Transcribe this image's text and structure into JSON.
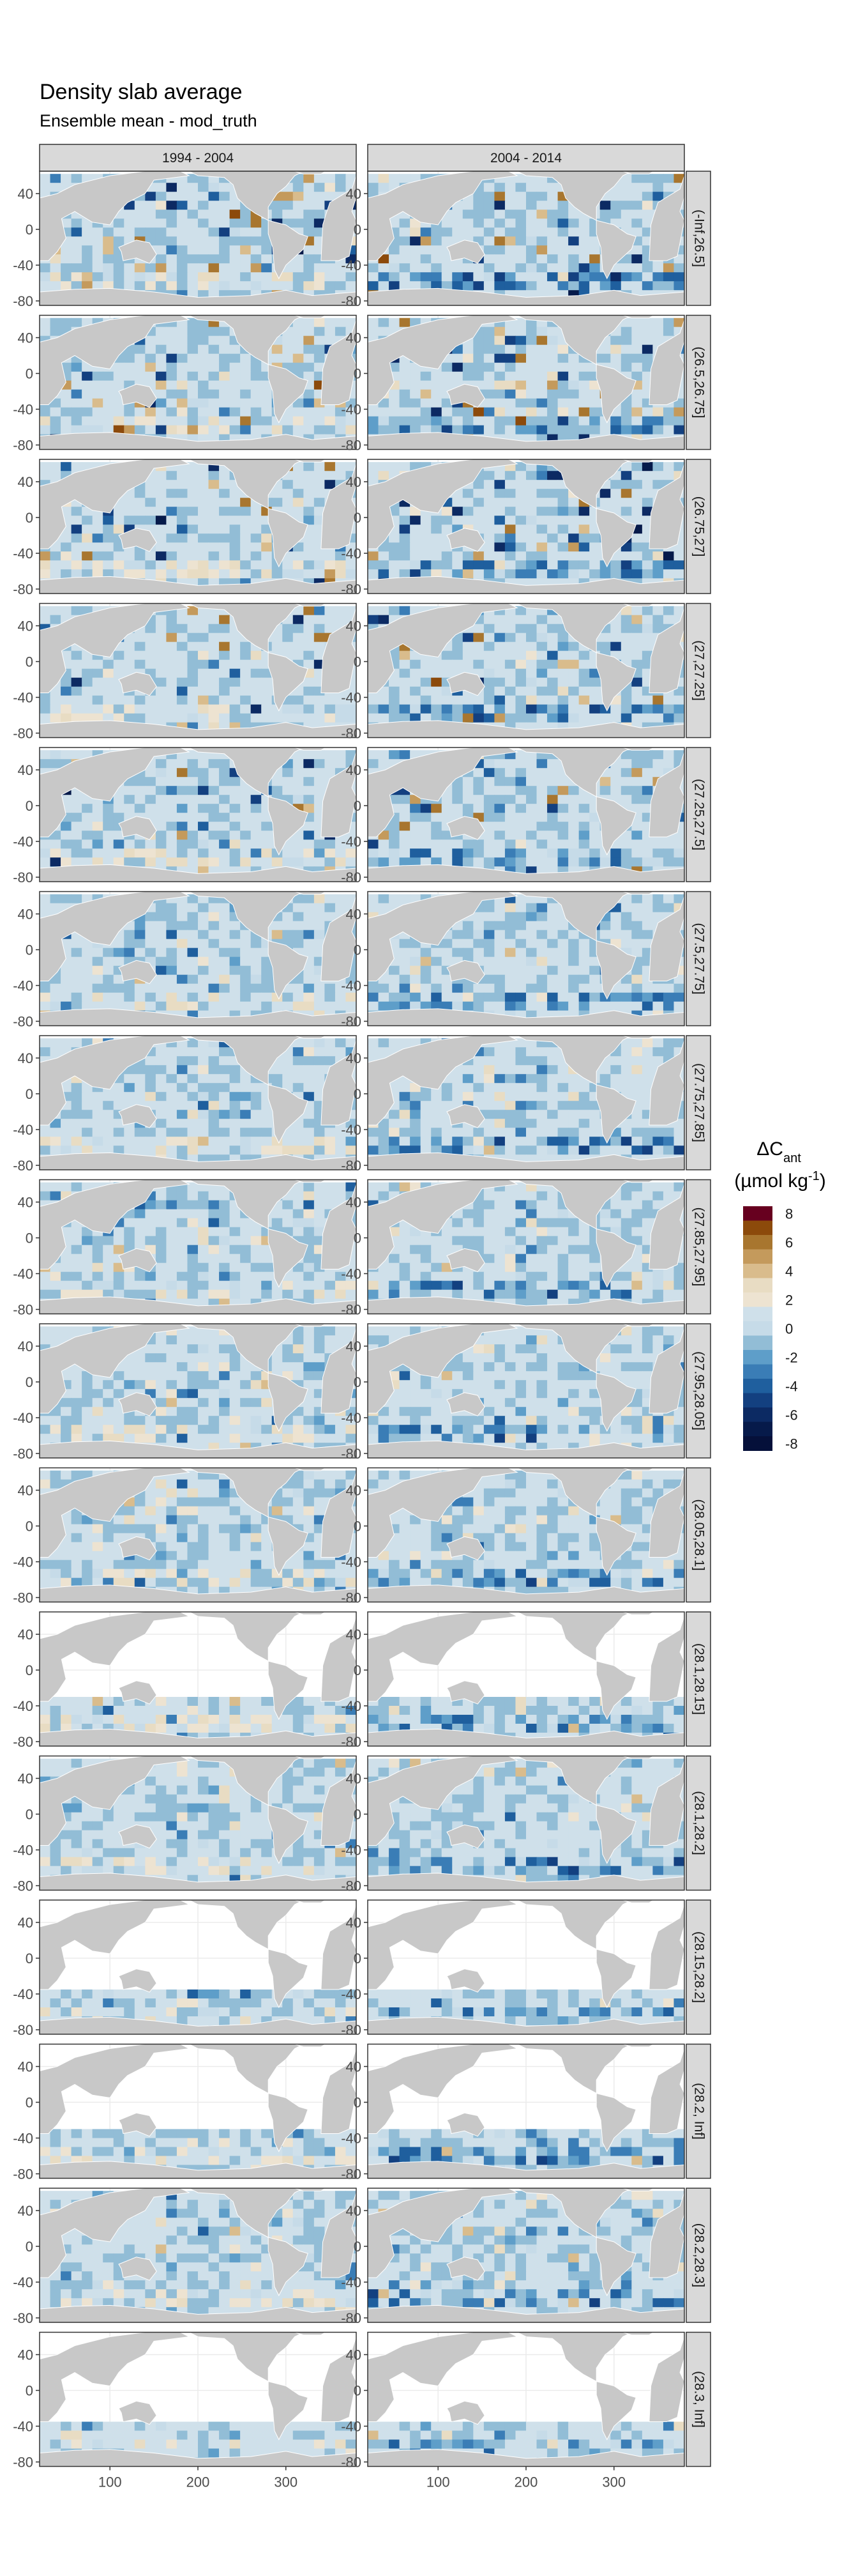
{
  "chart_data": {
    "type": "heatmap",
    "title": "Density slab average",
    "subtitle": "Ensemble mean - mod_truth",
    "xlabel": "",
    "ylabel": "",
    "columns": [
      "1994 - 2004",
      "2004 - 2014"
    ],
    "rows": [
      "(-Inf,26.5]",
      "(26.5,26.75]",
      "(26.75,27]",
      "(27,27.25]",
      "(27.25,27.5]",
      "(27.5,27.75]",
      "(27.75,27.85]",
      "(27.85,27.95]",
      "(27.95,28.05]",
      "(28.05,28.1]",
      "(28.1,28.15]",
      "(28.1,28.2]",
      "(28.15,28.2]",
      "(28.2, Inf]",
      "(28.2,28.3]",
      "(28.3, Inf]"
    ],
    "x_ticks": [
      100,
      200,
      300
    ],
    "y_ticks": [
      40,
      0,
      -40,
      -80
    ],
    "xlim": [
      20,
      380
    ],
    "ylim": [
      -85,
      65
    ],
    "legend": {
      "title_main": "ΔC",
      "title_sub": "ant",
      "title_unit": "(µmol kg",
      "title_exp": "-1",
      "title_close": ")",
      "position": "right",
      "breaks": [
        {
          "label": "8",
          "color": "#67001f"
        },
        {
          "label": "",
          "color": "#8c4a0b"
        },
        {
          "label": "6",
          "color": "#a8762f"
        },
        {
          "label": "",
          "color": "#c49a5c"
        },
        {
          "label": "4",
          "color": "#d9bc8c"
        },
        {
          "label": "",
          "color": "#e8dcc3"
        },
        {
          "label": "2",
          "color": "#ede3d1"
        },
        {
          "label": "",
          "color": "#cfe0ea"
        },
        {
          "label": "0",
          "color": "#c6dbe8"
        },
        {
          "label": "",
          "color": "#92bdd6"
        },
        {
          "label": "-2",
          "color": "#5e9ec9"
        },
        {
          "label": "",
          "color": "#3a7db6"
        },
        {
          "label": "-4",
          "color": "#1f5f9e"
        },
        {
          "label": "",
          "color": "#134080"
        },
        {
          "label": "-6",
          "color": "#0c2a63"
        },
        {
          "label": "",
          "color": "#061a4a"
        },
        {
          "label": "-8",
          "color": "#05103a"
        }
      ]
    }
  },
  "colors": {
    "land": "#c8c8c8",
    "ocean_missing": "#ffffff",
    "strip_fill": "#d9d9d9",
    "panel_border": "#333333",
    "grid": "#ebebeb",
    "pos_low": "#e8dcc3",
    "pos_mid": "#c49a5c",
    "pos_high": "#8c4a0b",
    "neg_low": "#c6dbe8",
    "neg_mid": "#5e9ec9",
    "neg_high": "#134080"
  }
}
